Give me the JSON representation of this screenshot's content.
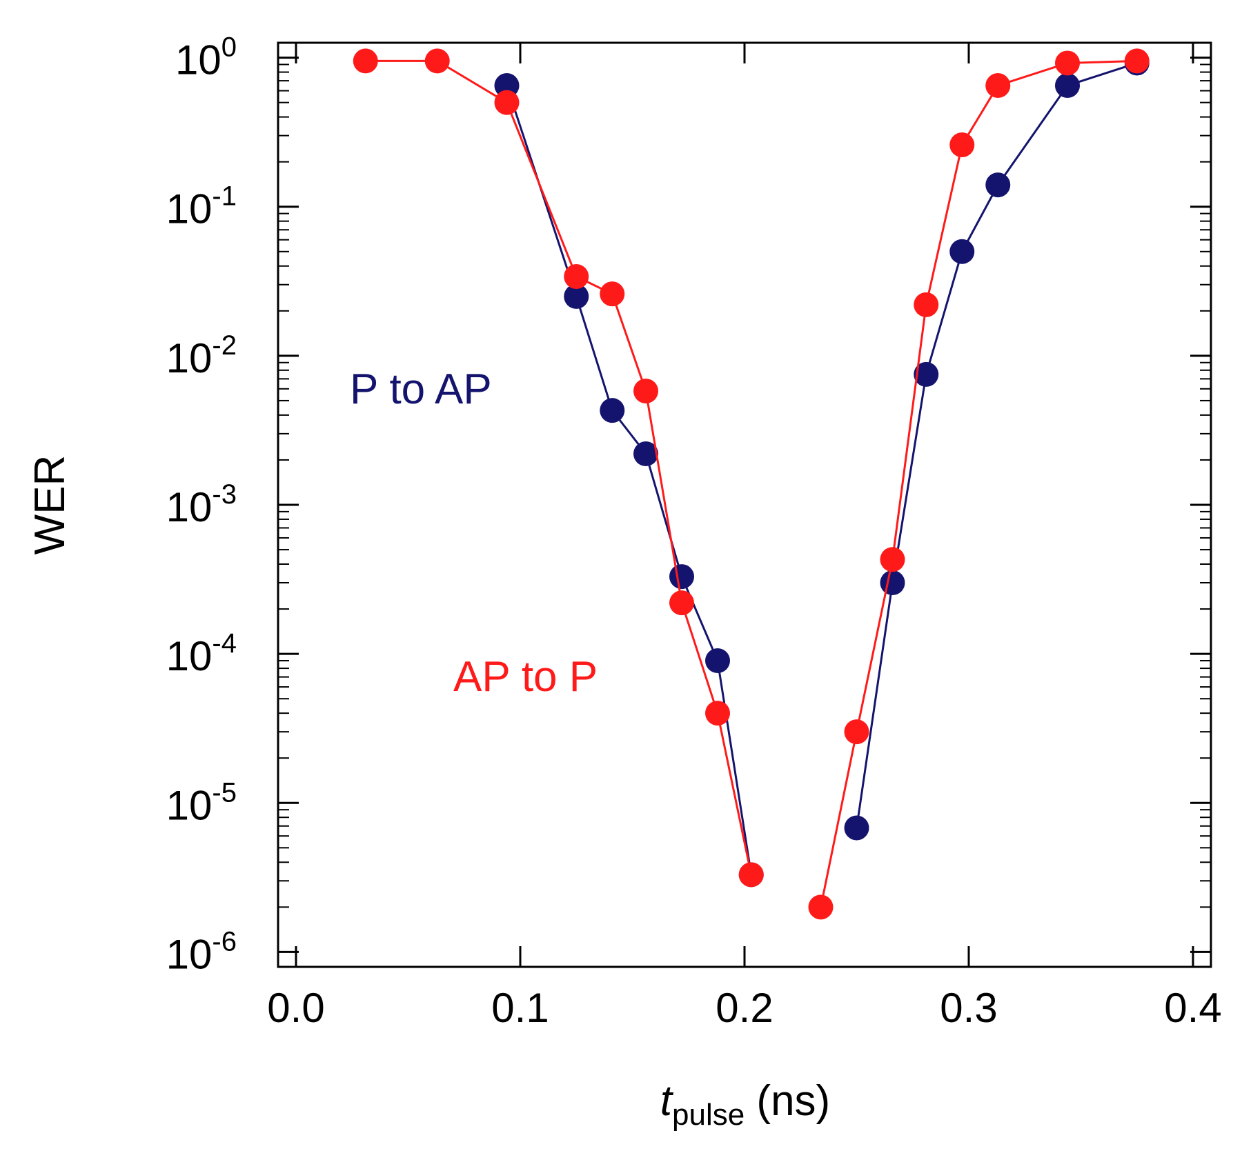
{
  "chart_data": {
    "type": "scatter",
    "title": "",
    "xlabel": {
      "main": "t",
      "sub": "pulse",
      "unit": " (ns)"
    },
    "ylabel": "WER",
    "xlim": [
      -0.008,
      0.408
    ],
    "ylim_log10": [
      -6.1,
      0.1
    ],
    "x_ticks": [
      0.0,
      0.1,
      0.2,
      0.3,
      0.4
    ],
    "x_tick_labels": [
      "0.0",
      "0.1",
      "0.2",
      "0.3",
      "0.4"
    ],
    "y_ticks_exp": [
      0,
      -1,
      -2,
      -3,
      -4,
      -5,
      -6
    ],
    "y_tick_labels": [
      {
        "base": "10",
        "exp": "0"
      },
      {
        "base": "10",
        "exp": "-1"
      },
      {
        "base": "10",
        "exp": "-2"
      },
      {
        "base": "10",
        "exp": "-3"
      },
      {
        "base": "10",
        "exp": "-4"
      },
      {
        "base": "10",
        "exp": "-5"
      },
      {
        "base": "10",
        "exp": "-6"
      }
    ],
    "grid": false,
    "series": [
      {
        "name": "P to AP",
        "color": "#14146e",
        "label_position": "middle-left",
        "segments": [
          {
            "x": [
              0.094,
              0.125,
              0.141,
              0.156,
              0.172,
              0.188,
              0.203
            ],
            "y": [
              0.65,
              0.025,
              0.0043,
              0.0022,
              0.00033,
              9e-05,
              3.3e-06
            ]
          },
          {
            "x": [
              0.25,
              0.266,
              0.281,
              0.297,
              0.313,
              0.344,
              0.375
            ],
            "y": [
              6.8e-06,
              0.0003,
              0.0075,
              0.05,
              0.14,
              0.65,
              0.92
            ]
          }
        ]
      },
      {
        "name": "AP to P",
        "color": "#ff1a1a",
        "label_position": "lower-middle",
        "segments": [
          {
            "x": [
              0.031,
              0.063,
              0.094,
              0.125,
              0.141,
              0.156,
              0.172,
              0.188,
              0.203
            ],
            "y": [
              0.95,
              0.95,
              0.5,
              0.034,
              0.026,
              0.0058,
              0.00022,
              4e-05,
              3.3e-06
            ]
          },
          {
            "x": [
              0.234,
              0.25,
              0.266,
              0.281,
              0.297,
              0.313,
              0.344,
              0.375
            ],
            "y": [
              2e-06,
              3e-05,
              0.00043,
              0.022,
              0.26,
              0.65,
              0.92,
              0.95
            ]
          }
        ]
      }
    ]
  }
}
